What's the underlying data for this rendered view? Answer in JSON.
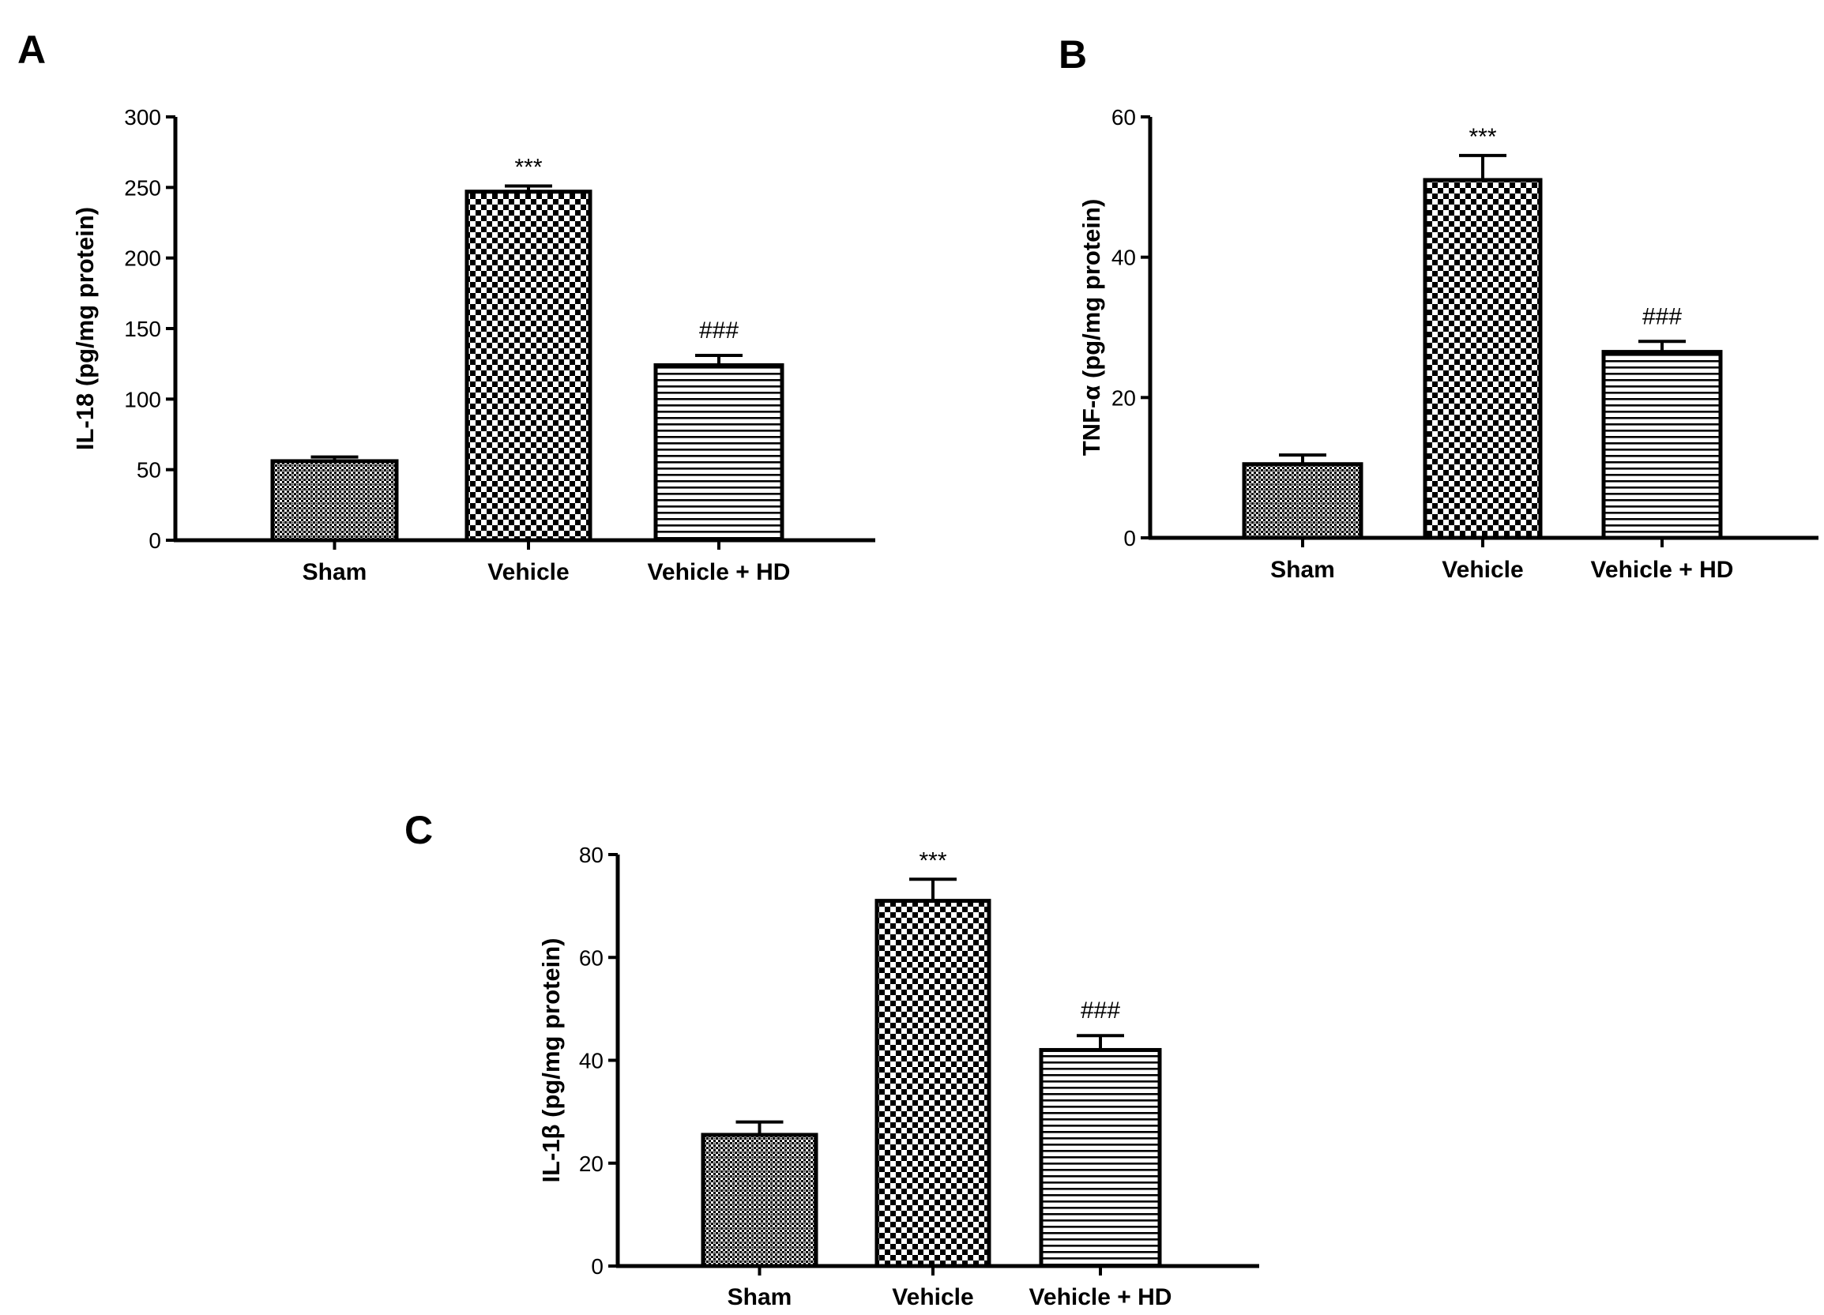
{
  "chart_data": [
    {
      "panel": "A",
      "type": "bar",
      "ylabel": "IL-18 (pg/mg protein)",
      "categories": [
        "Sham",
        "Vehicle",
        "Vehicle + HD"
      ],
      "values": [
        56,
        247,
        124
      ],
      "errors": [
        3,
        4,
        7
      ],
      "annotations": [
        "",
        "***",
        "###"
      ],
      "ylim": [
        0,
        300
      ],
      "yticks": [
        0,
        50,
        100,
        150,
        200,
        250,
        300
      ],
      "patterns": [
        "dots",
        "checker",
        "hlines"
      ]
    },
    {
      "panel": "B",
      "type": "bar",
      "ylabel": "TNF-α (pg/mg protein)",
      "categories": [
        "Sham",
        "Vehicle",
        "Vehicle + HD"
      ],
      "values": [
        10.5,
        51,
        26.5
      ],
      "errors": [
        1.3,
        3.5,
        1.5
      ],
      "annotations": [
        "",
        "***",
        "###"
      ],
      "ylim": [
        0,
        60
      ],
      "yticks": [
        0,
        20,
        40,
        60
      ],
      "patterns": [
        "dots",
        "checker",
        "hlines"
      ]
    },
    {
      "panel": "C",
      "type": "bar",
      "ylabel": "IL-1β (pg/mg protein)",
      "categories": [
        "Sham",
        "Vehicle",
        "Vehicle + HD"
      ],
      "values": [
        25.5,
        71,
        42
      ],
      "errors": [
        2.5,
        4.2,
        2.8
      ],
      "annotations": [
        "",
        "***",
        "###"
      ],
      "ylim": [
        0,
        80
      ],
      "yticks": [
        0,
        20,
        40,
        60,
        80
      ],
      "patterns": [
        "dots",
        "checker",
        "hlines"
      ]
    }
  ]
}
